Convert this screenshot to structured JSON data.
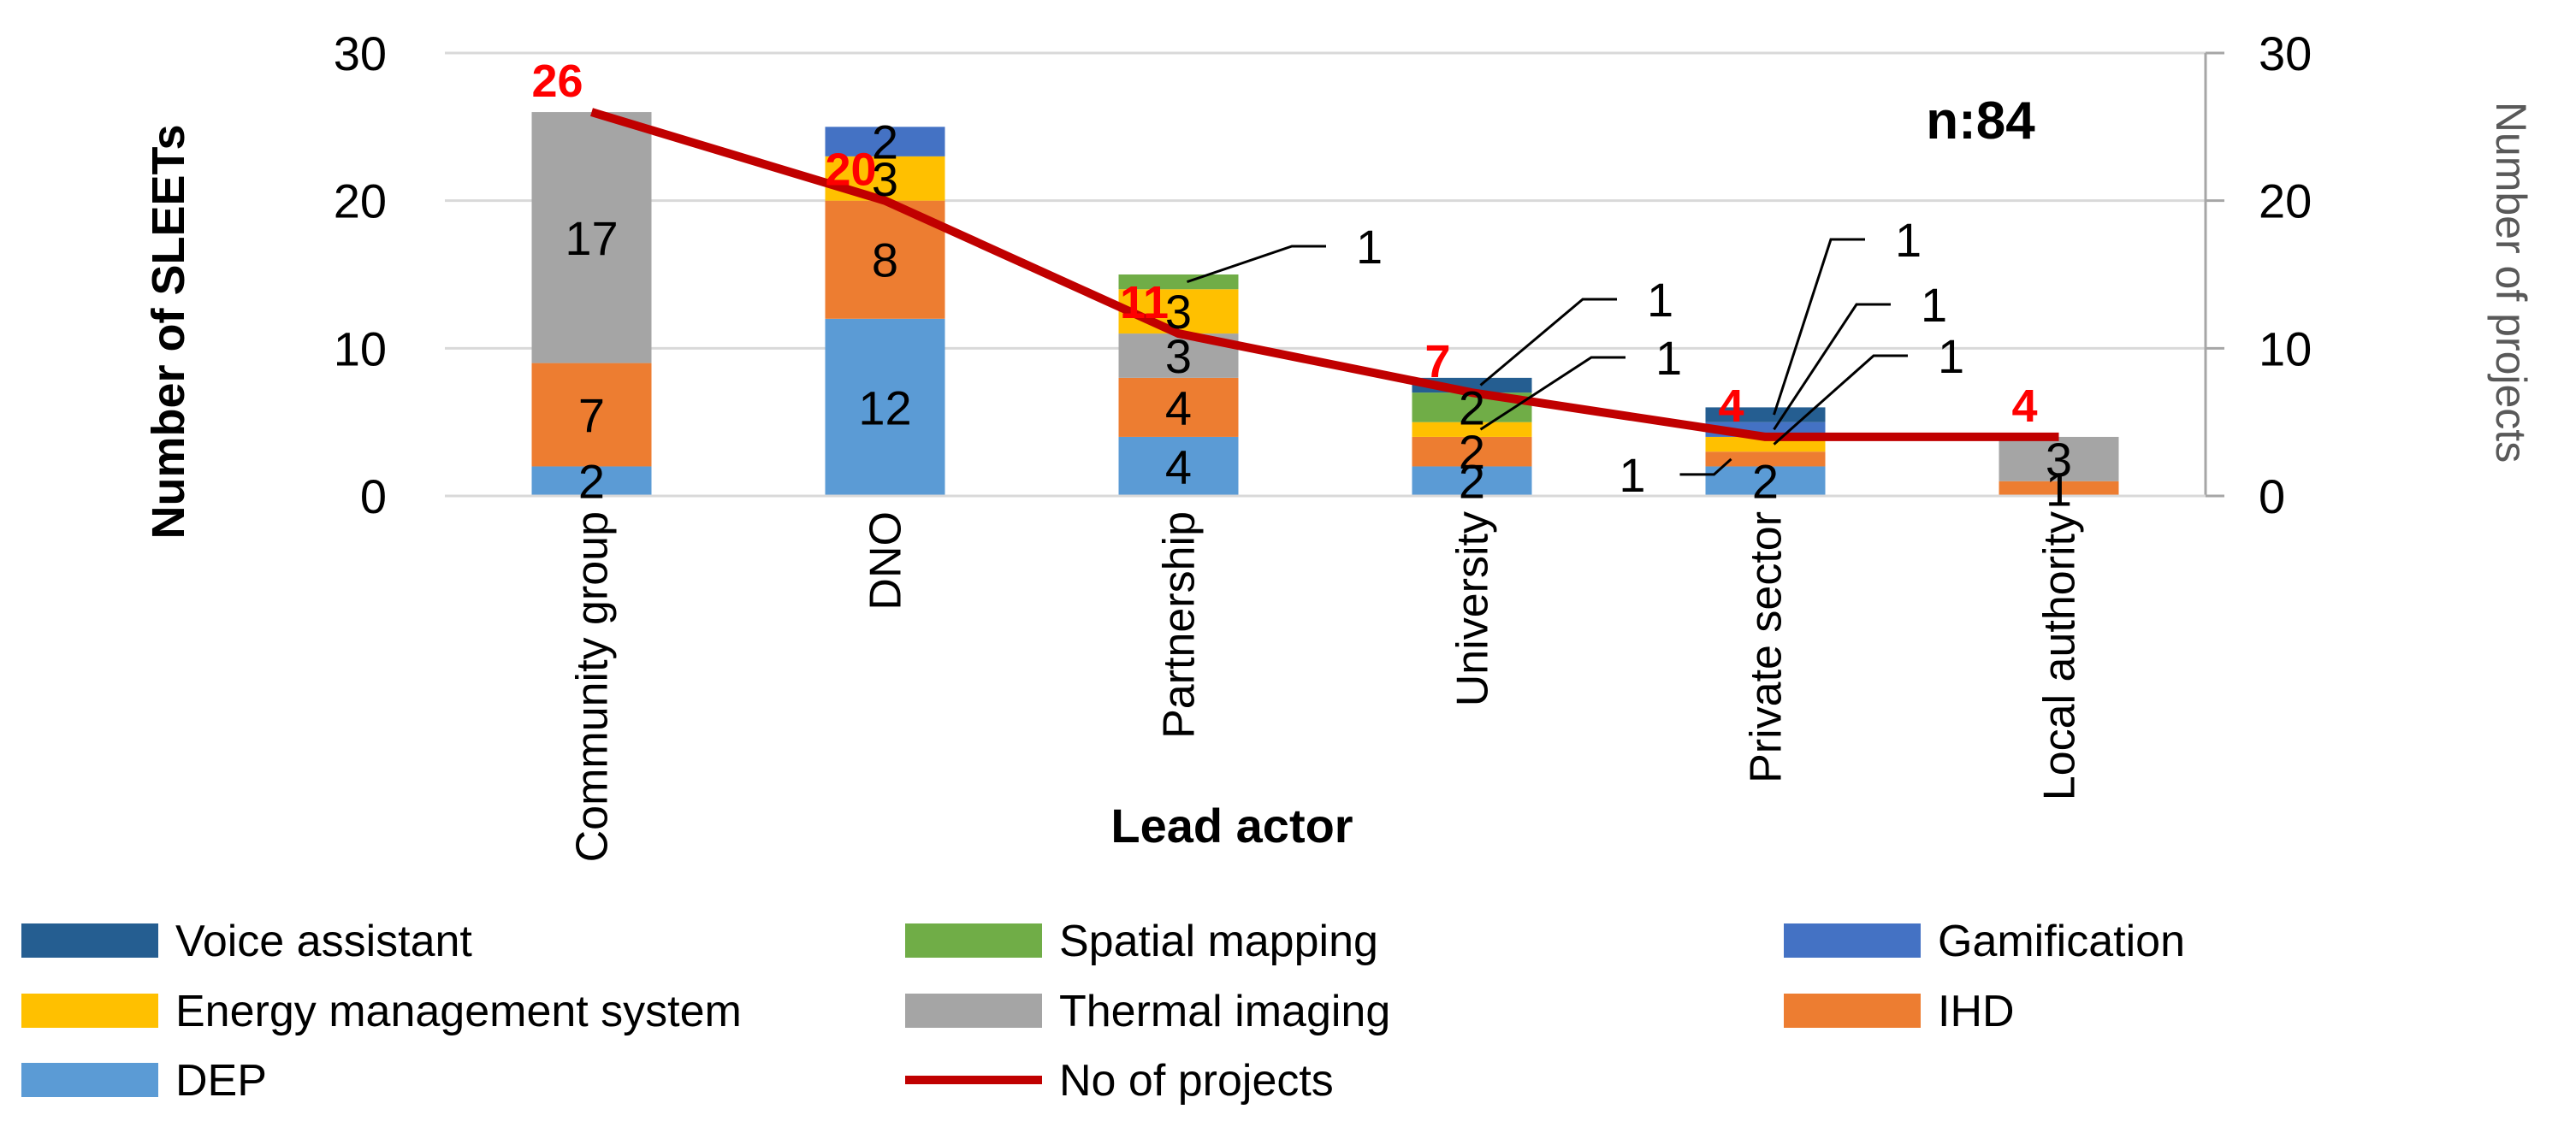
{
  "chart_data": {
    "type": "bar",
    "stacked": true,
    "xlabel": "Lead actor",
    "ylabel": "Number of SLEETs",
    "y2label": "Number of projects",
    "ylim": [
      0,
      30
    ],
    "y2lim": [
      0,
      30
    ],
    "yticks": [
      "0",
      "10",
      "20",
      "30"
    ],
    "annotation": "n:84",
    "categories": [
      "Community group",
      "DNO",
      "Partnership",
      "University",
      "Private sector",
      "Local authority"
    ],
    "series": [
      {
        "name": "DEP",
        "color": "#5B9BD5",
        "values": [
          2,
          12,
          4,
          2,
          2,
          0
        ]
      },
      {
        "name": "IHD",
        "color": "#ED7D31",
        "values": [
          7,
          8,
          4,
          2,
          1,
          1
        ]
      },
      {
        "name": "Thermal imaging",
        "color": "#A5A5A5",
        "values": [
          17,
          0,
          3,
          0,
          0,
          3
        ]
      },
      {
        "name": "Energy management system",
        "color": "#FFC000",
        "values": [
          0,
          3,
          3,
          1,
          1,
          0
        ]
      },
      {
        "name": "Gamification",
        "color": "#4472C4",
        "values": [
          0,
          2,
          0,
          0,
          1,
          0
        ]
      },
      {
        "name": "Spatial mapping",
        "color": "#70AD47",
        "values": [
          0,
          0,
          1,
          2,
          0,
          0
        ]
      },
      {
        "name": "Voice assistant",
        "color": "#255E91",
        "values": [
          0,
          0,
          0,
          1,
          1,
          0
        ]
      }
    ],
    "line": {
      "name": "No of projects",
      "color": "#C00000",
      "values": [
        26,
        20,
        11,
        7,
        4,
        4
      ],
      "label_color": "#FF0000"
    },
    "segment_labels": [
      {
        "cat": 0,
        "series": "DEP",
        "text": "2"
      },
      {
        "cat": 0,
        "series": "IHD",
        "text": "7"
      },
      {
        "cat": 0,
        "series": "Thermal imaging",
        "text": "17"
      },
      {
        "cat": 1,
        "series": "DEP",
        "text": "12"
      },
      {
        "cat": 1,
        "series": "IHD",
        "text": "8"
      },
      {
        "cat": 1,
        "series": "Energy management system",
        "text": "3"
      },
      {
        "cat": 1,
        "series": "Gamification",
        "text": "2"
      },
      {
        "cat": 2,
        "series": "DEP",
        "text": "4"
      },
      {
        "cat": 2,
        "series": "IHD",
        "text": "4"
      },
      {
        "cat": 2,
        "series": "Thermal imaging",
        "text": "3"
      },
      {
        "cat": 2,
        "series": "Energy management system",
        "text": "3"
      },
      {
        "cat": 3,
        "series": "DEP",
        "text": "2"
      },
      {
        "cat": 3,
        "series": "IHD",
        "text": "2"
      },
      {
        "cat": 3,
        "series": "Spatial mapping",
        "text": "2"
      },
      {
        "cat": 4,
        "series": "DEP",
        "text": "2"
      },
      {
        "cat": 5,
        "series": "Thermal imaging",
        "text": "3"
      },
      {
        "cat": 5,
        "series": "IHD",
        "text": "1"
      }
    ],
    "callouts": [
      {
        "cat": 2,
        "series": "Spatial mapping",
        "text": "1"
      },
      {
        "cat": 3,
        "series": "Voice assistant",
        "text": "1"
      },
      {
        "cat": 3,
        "series": "Energy management system",
        "text": "1"
      },
      {
        "cat": 4,
        "series": "Voice assistant",
        "text": "1"
      },
      {
        "cat": 4,
        "series": "Gamification",
        "text": "1"
      },
      {
        "cat": 4,
        "series": "Energy management system",
        "text": "1"
      },
      {
        "cat": 4,
        "series": "IHD",
        "text": "1"
      }
    ],
    "legend": {
      "placement": "bottom",
      "entries": [
        "Voice assistant",
        "Spatial mapping",
        "Gamification",
        "Energy management system",
        "Thermal imaging",
        "IHD",
        "DEP",
        "No of projects"
      ]
    }
  }
}
